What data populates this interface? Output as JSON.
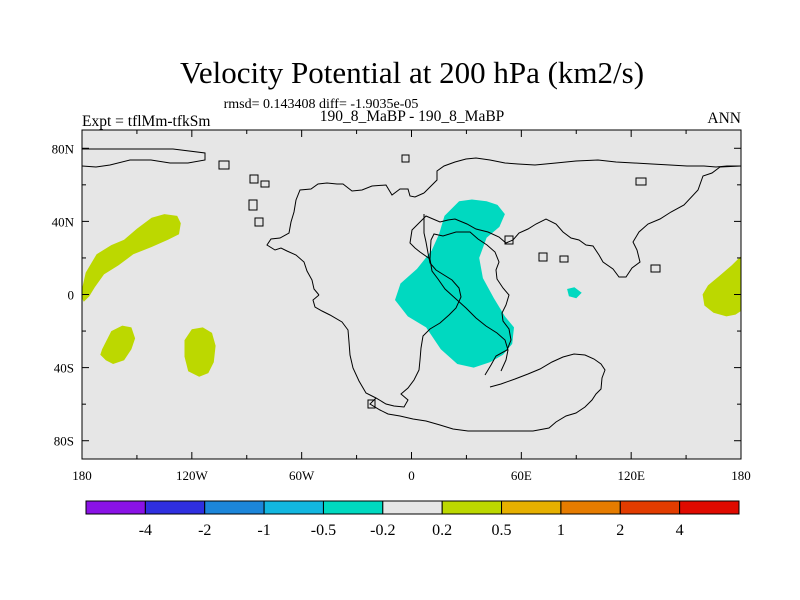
{
  "chart_data": {
    "type": "heatmap",
    "projection": "cylindrical-equidistant",
    "title": "Velocity Potential at 200 hPa (km2/s)",
    "stats_line": "rmsd= 0.143408 diff= -1.9035e-05",
    "case_label": "190_8_MaBP - 190_8_MaBP",
    "expt_label": "Expt = tflMm-tfkSm",
    "season_label": "ANN",
    "lon_range": [
      -180,
      180
    ],
    "lat_range": [
      -90,
      90
    ],
    "x_ticks": [
      {
        "value": -180,
        "label": "180"
      },
      {
        "value": -120,
        "label": "120W"
      },
      {
        "value": -60,
        "label": "60W"
      },
      {
        "value": 0,
        "label": "0"
      },
      {
        "value": 60,
        "label": "60E"
      },
      {
        "value": 120,
        "label": "120E"
      },
      {
        "value": 180,
        "label": "180"
      }
    ],
    "y_ticks": [
      {
        "value": 80,
        "label": "80N"
      },
      {
        "value": 40,
        "label": "40N"
      },
      {
        "value": 0,
        "label": "0"
      },
      {
        "value": -40,
        "label": "40S"
      },
      {
        "value": -80,
        "label": "80S"
      }
    ],
    "colorbar": {
      "levels": [
        "-4",
        "-2",
        "-1",
        "-0.5",
        "-0.2",
        "0.2",
        "0.5",
        "1",
        "2",
        "4"
      ],
      "colors": [
        "#8a12e6",
        "#2f2fe0",
        "#1c86da",
        "#12b7e0",
        "#00d9c0",
        "#e6e6e6",
        "#bcd800",
        "#e6b000",
        "#e67c00",
        "#e23c00",
        "#e00a00"
      ]
    },
    "background_color": "#e6e6e6",
    "regions": [
      {
        "name": "anomaly-north-pacific",
        "class": "0.2 to 0.5",
        "color": "#bcd800",
        "lonlat": [
          [
            -180,
            3
          ],
          [
            -178,
            12
          ],
          [
            -172,
            22
          ],
          [
            -164,
            27
          ],
          [
            -157,
            30
          ],
          [
            -150,
            36
          ],
          [
            -142,
            42
          ],
          [
            -135,
            44
          ],
          [
            -128,
            43
          ],
          [
            -126,
            39
          ],
          [
            -127,
            33
          ],
          [
            -133,
            30
          ],
          [
            -142,
            26
          ],
          [
            -152,
            22
          ],
          [
            -160,
            16
          ],
          [
            -168,
            11
          ],
          [
            -173,
            4
          ],
          [
            -176,
            -1
          ],
          [
            -179,
            -4
          ],
          [
            -180,
            -2
          ]
        ]
      },
      {
        "name": "anomaly-south-pacific-west",
        "class": "0.2 to 0.5",
        "color": "#bcd800",
        "lonlat": [
          [
            -169,
            -30
          ],
          [
            -164,
            -20
          ],
          [
            -158,
            -17
          ],
          [
            -153,
            -18
          ],
          [
            -151,
            -24
          ],
          [
            -153,
            -30
          ],
          [
            -157,
            -36
          ],
          [
            -163,
            -38
          ],
          [
            -167,
            -36
          ],
          [
            -170,
            -33
          ]
        ]
      },
      {
        "name": "anomaly-south-pacific-east",
        "class": "0.2 to 0.5",
        "color": "#bcd800",
        "lonlat": [
          [
            -124,
            -25
          ],
          [
            -120,
            -19
          ],
          [
            -114,
            -18
          ],
          [
            -109,
            -21
          ],
          [
            -107,
            -28
          ],
          [
            -108,
            -37
          ],
          [
            -111,
            -43
          ],
          [
            -116,
            -45
          ],
          [
            -122,
            -42
          ],
          [
            -124,
            -34
          ]
        ]
      },
      {
        "name": "anomaly-east-edge",
        "class": "0.2 to 0.5",
        "color": "#bcd800",
        "lonlat": [
          [
            180,
            21
          ],
          [
            175,
            16
          ],
          [
            168,
            10
          ],
          [
            162,
            5
          ],
          [
            159,
            0
          ],
          [
            160,
            -6
          ],
          [
            165,
            -10
          ],
          [
            172,
            -12
          ],
          [
            177,
            -11
          ],
          [
            180,
            -9
          ]
        ]
      },
      {
        "name": "anomaly-africa-europe",
        "class": "-0.5 to -0.2",
        "color": "#00d9c0",
        "lonlat": [
          [
            26,
            51
          ],
          [
            33,
            52
          ],
          [
            41,
            51
          ],
          [
            47,
            49
          ],
          [
            51,
            44
          ],
          [
            48,
            37
          ],
          [
            41,
            31
          ],
          [
            37,
            20
          ],
          [
            39,
            9
          ],
          [
            45,
            -2
          ],
          [
            51,
            -12
          ],
          [
            56,
            -18
          ],
          [
            55,
            -27
          ],
          [
            50,
            -33
          ],
          [
            43,
            -37
          ],
          [
            34,
            -40
          ],
          [
            25,
            -38
          ],
          [
            16,
            -30
          ],
          [
            8,
            -18
          ],
          [
            -2,
            -12
          ],
          [
            -9,
            -3
          ],
          [
            -6,
            6
          ],
          [
            3,
            14
          ],
          [
            11,
            24
          ],
          [
            15,
            33
          ],
          [
            18,
            43
          ]
        ]
      },
      {
        "name": "anomaly-indian-ocean-spot",
        "class": "-0.5 to -0.2",
        "color": "#00d9c0",
        "lonlat": [
          [
            85,
            3
          ],
          [
            89,
            4
          ],
          [
            93,
            1
          ],
          [
            90,
            -2
          ],
          [
            86,
            -1
          ]
        ]
      }
    ]
  }
}
